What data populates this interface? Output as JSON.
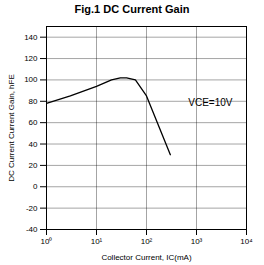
{
  "chart_data": {
    "type": "line",
    "title": "Fig.1 DC Current Gain",
    "x_label": "Collector Current, IC(mA)",
    "y_label": "DC Current Current Gain, hFE",
    "annotation": "VCE=10V",
    "x": [
      1,
      3,
      10,
      20,
      30,
      40,
      60,
      100,
      300
    ],
    "series": [
      {
        "name": "VCE=10V",
        "color": "#000000",
        "values": [
          78,
          85,
          94,
          100,
          102,
          102,
          100,
          85,
          30
        ]
      }
    ],
    "log": "x",
    "xlim": [
      1,
      10000
    ],
    "xticks": [
      {
        "value": 1,
        "label": "10⁰"
      },
      {
        "value": 10,
        "label": "10¹"
      },
      {
        "value": 100,
        "label": "10²"
      },
      {
        "value": 1000,
        "label": "10³"
      },
      {
        "value": 10000,
        "label": "10⁴"
      }
    ],
    "ylim": [
      -40,
      150
    ],
    "yticks": [
      -40,
      -20,
      0,
      20,
      40,
      60,
      80,
      100,
      120,
      140
    ],
    "grid": true
  }
}
